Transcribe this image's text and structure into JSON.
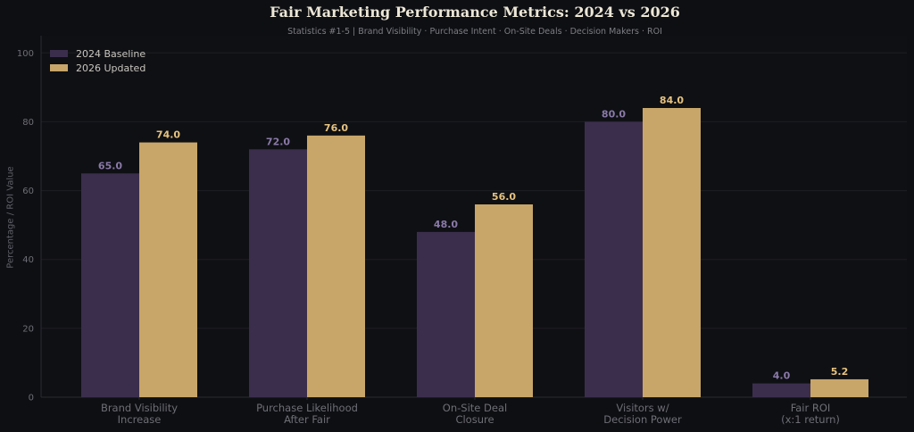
{
  "title": "Fair Marketing Performance Metrics: 2024 vs 2026",
  "subtitle": "Statistics #1-5  |  Brand Visibility · Purchase Intent · On-Site Deals · Decision Makers · ROI",
  "colors": {
    "background": "#0e0f13",
    "baseline": "#3b2e4d",
    "baseline_label": "#8a79a8",
    "updated": "#c8a66a",
    "updated_label": "#e6c27f"
  },
  "chart_data": {
    "type": "bar",
    "categories": [
      [
        "Brand Visibility",
        "Increase"
      ],
      [
        "Purchase Likelihood",
        "After Fair"
      ],
      [
        "On-Site Deal",
        "Closure"
      ],
      [
        "Visitors w/",
        "Decision Power"
      ],
      [
        "Fair ROI",
        "(x:1 return)"
      ]
    ],
    "series": [
      {
        "name": "2024 Baseline",
        "values": [
          65.0,
          72.0,
          48.0,
          80.0,
          4.0
        ]
      },
      {
        "name": "2026 Updated",
        "values": [
          74.0,
          76.0,
          56.0,
          84.0,
          5.2
        ]
      }
    ],
    "ylabel": "Percentage / ROI Value",
    "ylim": [
      0,
      105
    ],
    "yticks": [
      0,
      20,
      40,
      60,
      80,
      100
    ],
    "grid": true,
    "legend_position": "top-left"
  }
}
